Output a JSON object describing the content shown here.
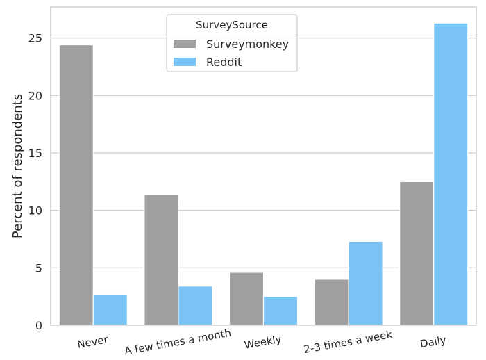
{
  "chart_data": {
    "type": "bar",
    "title": "",
    "xlabel": "",
    "ylabel": "Percent of respondents",
    "categories": [
      "Never",
      "A few times a month",
      "Weekly",
      "2-3 times a week",
      "Daily"
    ],
    "series": [
      {
        "name": "Surveymonkey",
        "color": "#a0a0a0",
        "values": [
          24.4,
          11.4,
          4.6,
          4.0,
          12.5
        ]
      },
      {
        "name": "Reddit",
        "color": "#79c3f5",
        "values": [
          2.7,
          3.4,
          2.5,
          7.3,
          26.3
        ]
      }
    ],
    "ylim": [
      0,
      27.7
    ],
    "yticks": [
      0,
      5,
      10,
      15,
      20,
      25
    ],
    "grid": "horizontal",
    "legend": {
      "title": "SurveySource",
      "placement": "upper-center"
    }
  }
}
